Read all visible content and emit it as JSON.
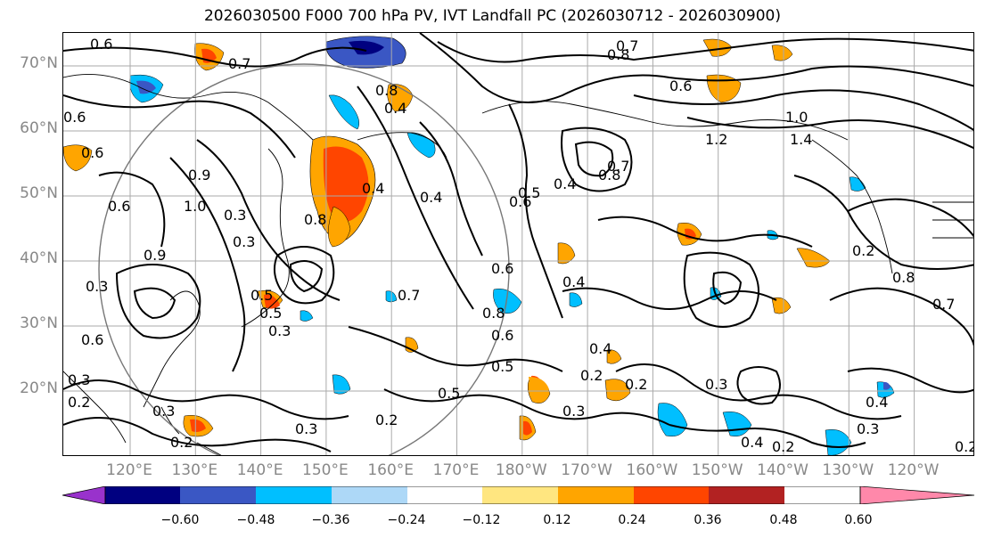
{
  "title": "2026030500 F000 700 hPa PV, IVT Landfall PC (2026030712 - 2026030900)",
  "lat_labels": [
    "70°N",
    "60°N",
    "50°N",
    "40°N",
    "30°N",
    "20°N"
  ],
  "lon_labels": [
    "120°E",
    "130°E",
    "140°E",
    "150°E",
    "160°E",
    "170°E",
    "180°W",
    "170°W",
    "160°W",
    "150°W",
    "140°W",
    "130°W",
    "120°W"
  ],
  "colorbar": {
    "ticks": [
      "−0.60",
      "−0.48",
      "−0.36",
      "−0.24",
      "−0.12",
      "0.12",
      "0.24",
      "0.36",
      "0.48",
      "0.60"
    ],
    "colors": [
      "#9932cc",
      "#000080",
      "#3a57c4",
      "#00bfff",
      "#add8f7",
      "#ffffff",
      "#ffe680",
      "#ffa500",
      "#ff4500",
      "#b22222",
      "#ff88aa"
    ]
  },
  "contour_labels": [
    "0.6",
    "0.7",
    "0.6",
    "0.6",
    "0.9",
    "0.3",
    "1.0",
    "0.6",
    "0.8",
    "0.3",
    "0.9",
    "0.5",
    "0.3",
    "0.8",
    "0.4",
    "0.7",
    "0.4",
    "0.6",
    "0.4",
    "0.8",
    "0.2",
    "0.3",
    "0.5",
    "0.3",
    "0.2",
    "0.5",
    "0.6",
    "0.4",
    "0.3",
    "0.4",
    "0.2",
    "0.3",
    "0.2",
    "0.4",
    "0.2",
    "0.3",
    "0.5",
    "0.6",
    "0.3",
    "0.2",
    "0.3",
    "0.2",
    "0.4",
    "0.7",
    "0.8",
    "0.6",
    "1.0",
    "1.2",
    "1.4",
    "0.7",
    "0.8",
    "0.4",
    "0.5",
    "0.6",
    "0.8",
    "0.7",
    "0.2"
  ]
}
